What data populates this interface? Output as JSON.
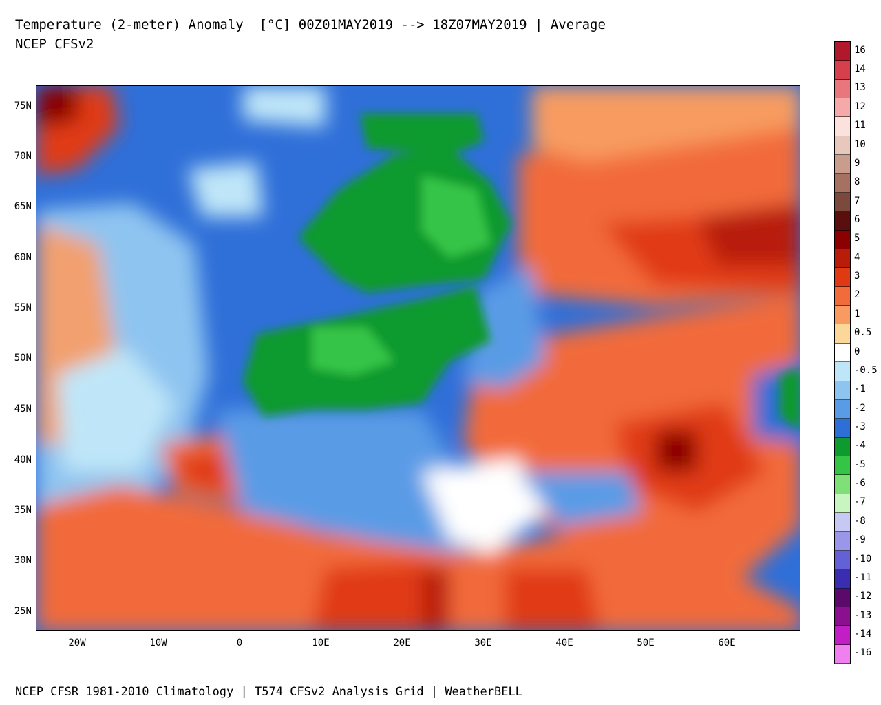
{
  "header": {
    "title": "Temperature (2-meter) Anomaly  [°C] 00Z01MAY2019 --> 18Z07MAY2019 | Average",
    "subtitle": "NCEP CFSv2"
  },
  "footer": {
    "text": "NCEP CFSR 1981-2010 Climatology | T574 CFSv2 Analysis Grid | WeatherBELL"
  },
  "map": {
    "latitude_labels": [
      "75N",
      "70N",
      "65N",
      "60N",
      "55N",
      "50N",
      "45N",
      "40N",
      "35N",
      "30N",
      "25N"
    ],
    "longitude_labels": [
      "20W",
      "10W",
      "0",
      "10E",
      "20E",
      "30E",
      "40E",
      "50E",
      "60E"
    ]
  },
  "colorbar": {
    "levels": [
      {
        "label": "16",
        "color": "#b2182b"
      },
      {
        "label": "14",
        "color": "#d6404c"
      },
      {
        "label": "13",
        "color": "#e8767c"
      },
      {
        "label": "12",
        "color": "#f4aaa9"
      },
      {
        "label": "11",
        "color": "#fbe2dc"
      },
      {
        "label": "10",
        "color": "#e8c7bd"
      },
      {
        "label": "9",
        "color": "#c89d8e"
      },
      {
        "label": "8",
        "color": "#a57262"
      },
      {
        "label": "7",
        "color": "#7c4a3d"
      },
      {
        "label": "6",
        "color": "#5a0f0f"
      },
      {
        "label": "5",
        "color": "#8b0000"
      },
      {
        "label": "4",
        "color": "#b81d0a"
      },
      {
        "label": "3",
        "color": "#e03a14"
      },
      {
        "label": "2",
        "color": "#f26b3a"
      },
      {
        "label": "1",
        "color": "#f79b60"
      },
      {
        "label": "0.5",
        "color": "#fcd79a"
      },
      {
        "label": "0",
        "color": "#ffffff"
      },
      {
        "label": "-0.5",
        "color": "#bfe6f8"
      },
      {
        "label": "-1",
        "color": "#8ec4f0"
      },
      {
        "label": "-2",
        "color": "#5a9be6"
      },
      {
        "label": "-3",
        "color": "#2d6fd6"
      },
      {
        "label": "-4",
        "color": "#0e9a2e"
      },
      {
        "label": "-5",
        "color": "#34c446"
      },
      {
        "label": "-6",
        "color": "#7fe078"
      },
      {
        "label": "-7",
        "color": "#c9f5c0"
      },
      {
        "label": "-8",
        "color": "#c8c8f5"
      },
      {
        "label": "-9",
        "color": "#9a96ea"
      },
      {
        "label": "-10",
        "color": "#6460d6"
      },
      {
        "label": "-11",
        "color": "#3a2db0"
      },
      {
        "label": "-12",
        "color": "#5c0a6a"
      },
      {
        "label": "-13",
        "color": "#8a1090"
      },
      {
        "label": "-14",
        "color": "#c21ec6"
      },
      {
        "label": "-16",
        "color": "#f080f0"
      }
    ]
  }
}
